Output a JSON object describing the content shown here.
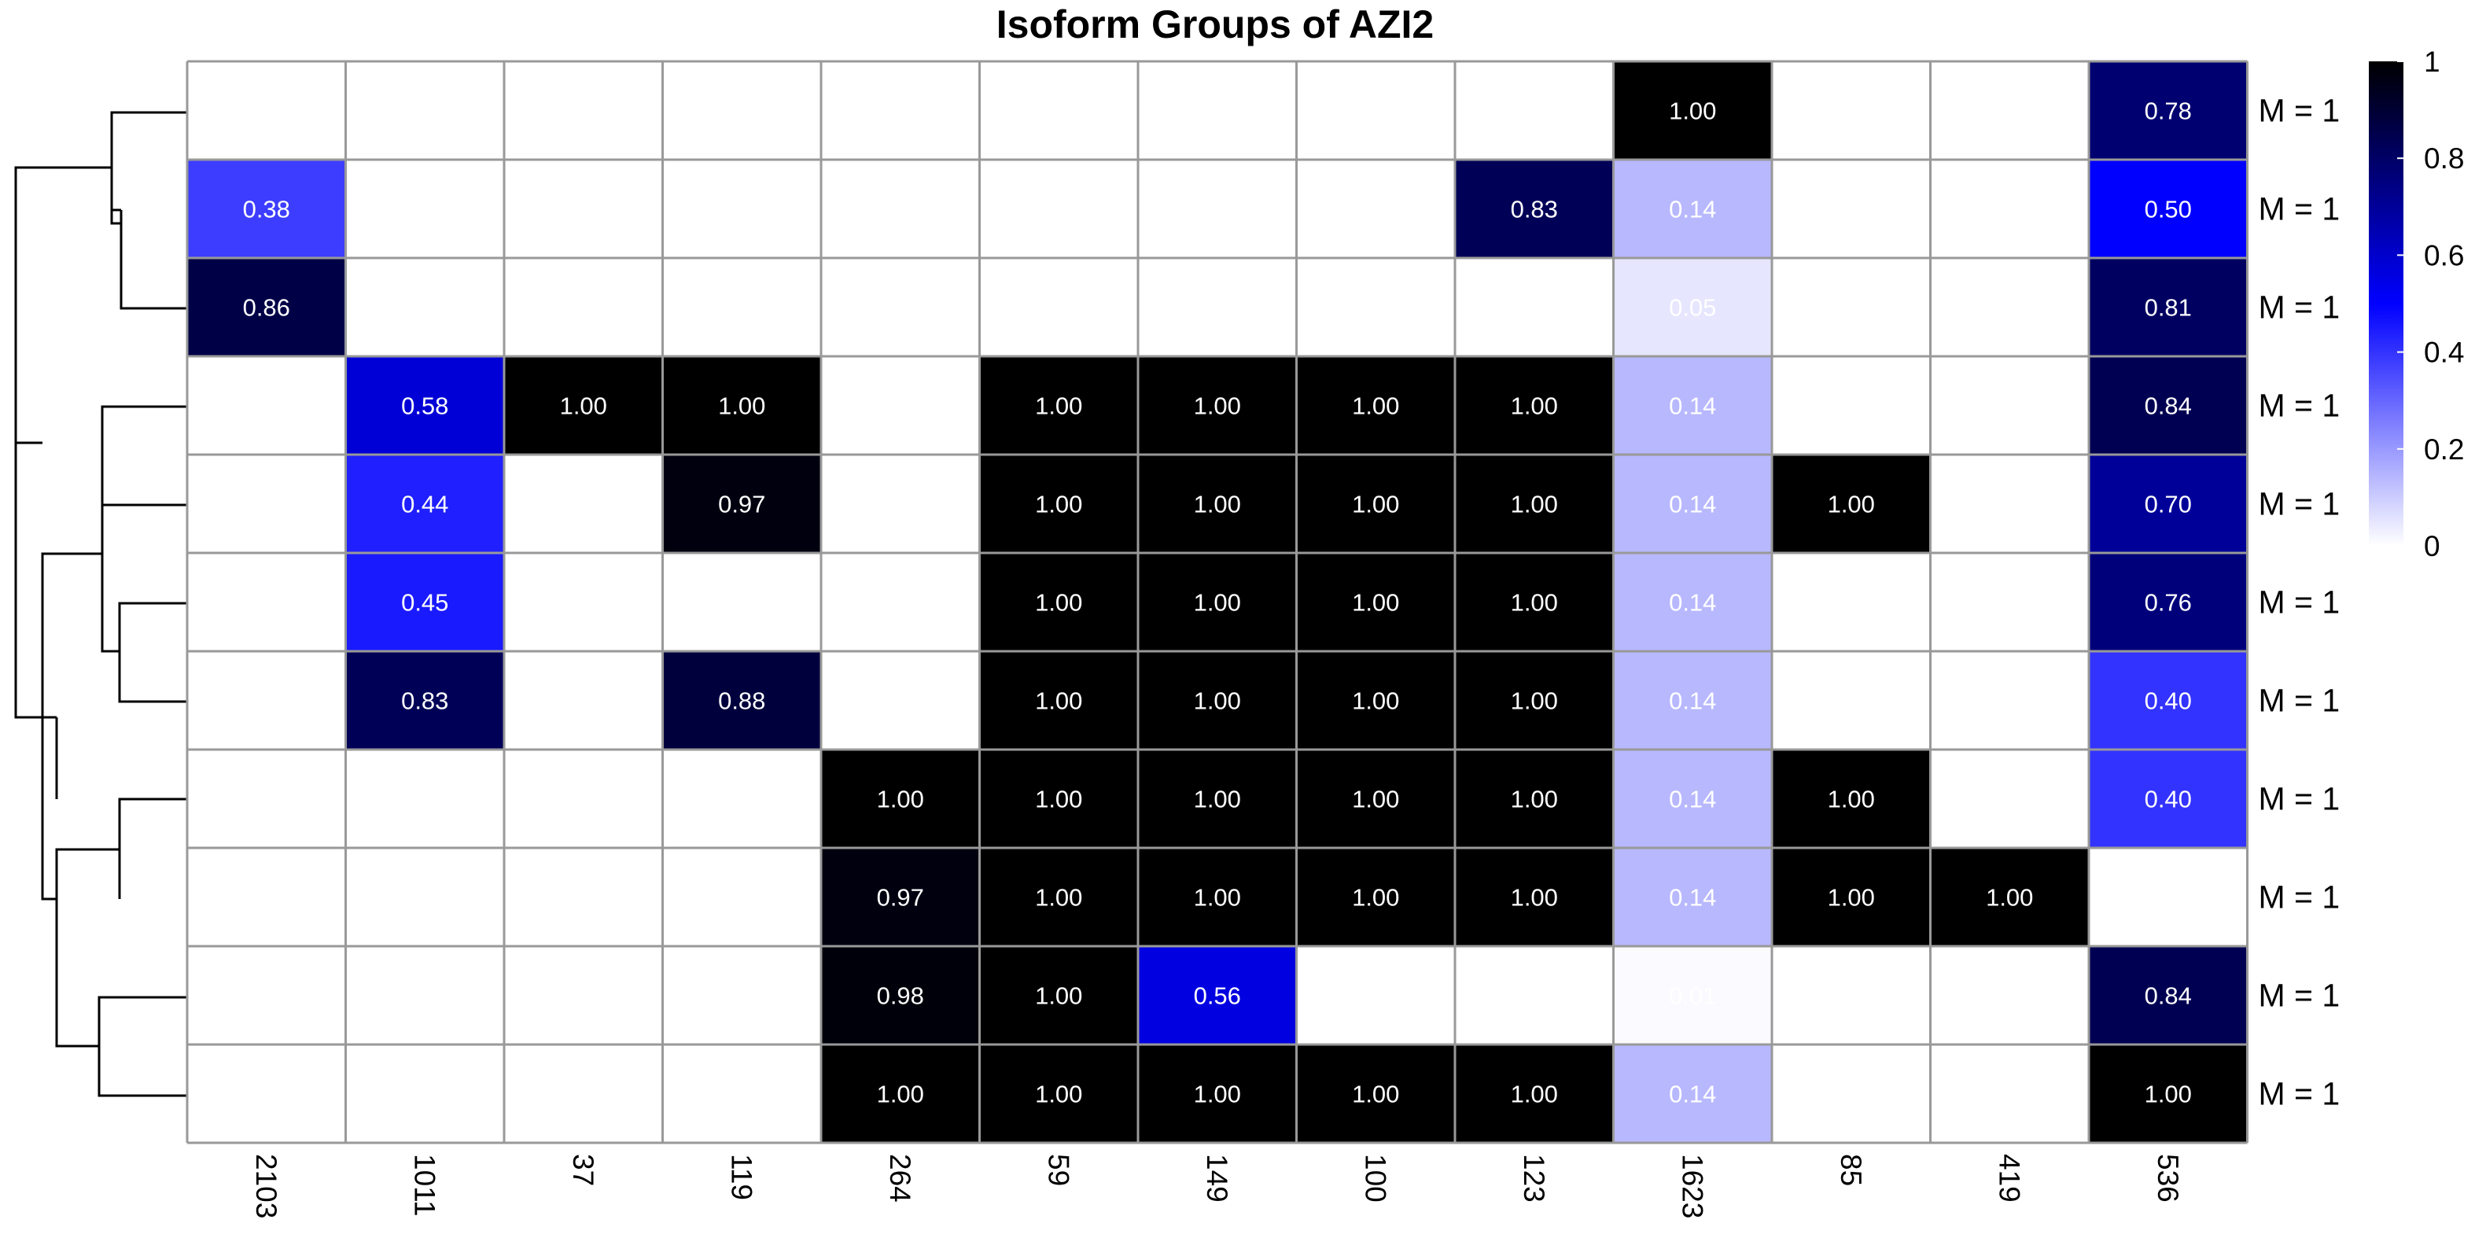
{
  "chart_data": {
    "type": "heatmap",
    "title": "Isoform Groups of AZI2",
    "columns": [
      "2103",
      "1011",
      "37",
      "119",
      "264",
      "59",
      "149",
      "100",
      "123",
      "1623",
      "85",
      "419",
      "536"
    ],
    "row_labels": [
      "M = 1",
      "M = 1",
      "M = 1",
      "M = 1",
      "M = 1",
      "M = 1",
      "M = 1",
      "M = 1",
      "M = 1",
      "M = 1",
      "M = 1"
    ],
    "values": [
      [
        null,
        null,
        null,
        null,
        null,
        null,
        null,
        null,
        null,
        1.0,
        null,
        null,
        0.78
      ],
      [
        0.38,
        null,
        null,
        null,
        null,
        null,
        null,
        null,
        0.83,
        0.14,
        null,
        null,
        0.5
      ],
      [
        0.86,
        null,
        null,
        null,
        null,
        null,
        null,
        null,
        null,
        0.05,
        null,
        null,
        0.81
      ],
      [
        null,
        0.58,
        1.0,
        1.0,
        null,
        1.0,
        1.0,
        1.0,
        1.0,
        0.14,
        null,
        null,
        0.84
      ],
      [
        null,
        0.44,
        null,
        0.97,
        null,
        1.0,
        1.0,
        1.0,
        1.0,
        0.14,
        1.0,
        null,
        0.7
      ],
      [
        null,
        0.45,
        null,
        null,
        null,
        1.0,
        1.0,
        1.0,
        1.0,
        0.14,
        null,
        null,
        0.76
      ],
      [
        null,
        0.83,
        null,
        0.88,
        null,
        1.0,
        1.0,
        1.0,
        1.0,
        0.14,
        null,
        null,
        0.4
      ],
      [
        null,
        null,
        null,
        null,
        1.0,
        1.0,
        1.0,
        1.0,
        1.0,
        0.14,
        1.0,
        null,
        0.4
      ],
      [
        null,
        null,
        null,
        null,
        0.97,
        1.0,
        1.0,
        1.0,
        1.0,
        0.14,
        1.0,
        1.0,
        null
      ],
      [
        null,
        null,
        null,
        null,
        0.98,
        1.0,
        0.56,
        null,
        null,
        0.01,
        null,
        null,
        0.84
      ],
      [
        null,
        null,
        null,
        null,
        1.0,
        1.0,
        1.0,
        1.0,
        1.0,
        0.14,
        null,
        null,
        1.0
      ]
    ],
    "color_scale": {
      "min": 0,
      "max": 1,
      "low": "#ffffff",
      "mid": "#0000ff",
      "high": "#000000"
    },
    "legend": {
      "ticks": [
        0,
        0.2,
        0.4,
        0.6,
        0.8,
        1
      ],
      "tick_labels": [
        "0",
        "0.2",
        "0.4",
        "0.6",
        "0.8",
        "1"
      ],
      "placement": "right"
    },
    "row_dendrogram": true,
    "grid_color": "#999999"
  }
}
